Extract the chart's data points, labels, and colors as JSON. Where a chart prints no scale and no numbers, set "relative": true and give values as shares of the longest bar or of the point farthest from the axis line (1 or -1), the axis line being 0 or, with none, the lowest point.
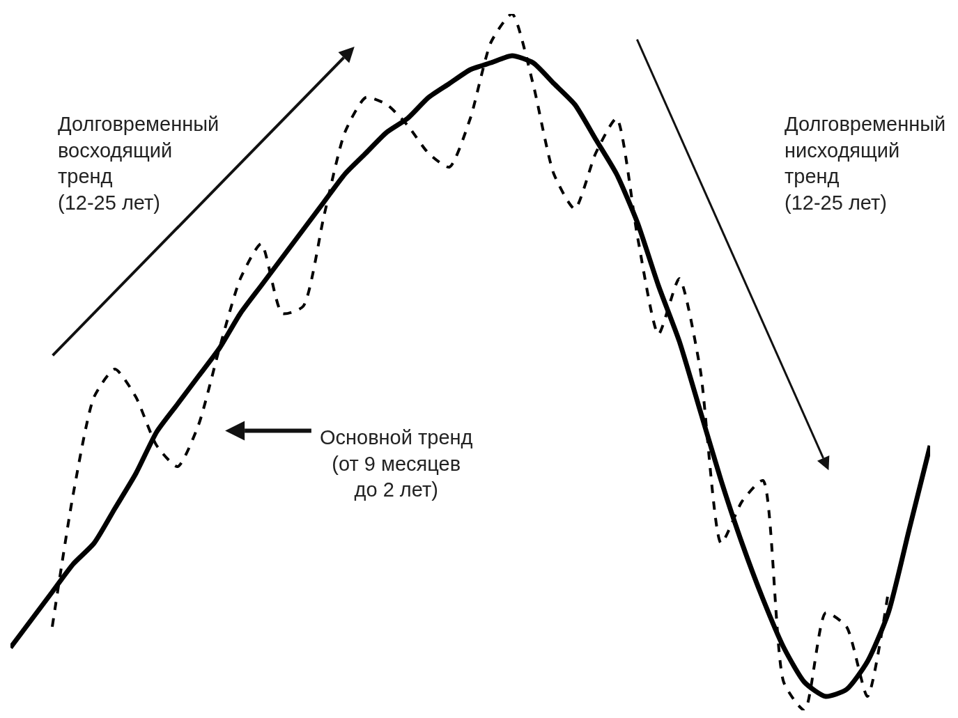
{
  "chart_data": {
    "type": "line",
    "relative": true,
    "legend": false,
    "marker": "none",
    "categories": [
      null,
      null,
      null,
      null,
      null,
      null,
      null,
      null,
      null,
      null,
      null,
      null,
      null,
      null,
      null,
      null,
      null,
      null,
      null,
      null,
      null,
      null,
      null,
      null,
      null,
      null,
      null,
      null,
      null,
      null,
      null,
      null,
      null,
      null,
      null,
      null,
      null,
      null,
      null,
      null,
      null,
      null,
      null,
      null,
      null
    ],
    "series": [
      {
        "color": "#000000",
        "line_style": "solid",
        "values": [
          0.09,
          0.13,
          0.17,
          0.21,
          0.24,
          0.29,
          0.34,
          0.4,
          0.44,
          0.48,
          0.52,
          0.57,
          0.61,
          0.65,
          0.69,
          0.73,
          0.77,
          0.8,
          0.83,
          0.85,
          0.88,
          0.9,
          0.92,
          0.93,
          0.94,
          0.93,
          0.9,
          0.87,
          0.82,
          0.77,
          0.7,
          0.61,
          0.53,
          0.43,
          0.33,
          0.24,
          0.16,
          0.09,
          0.04,
          0.02,
          0.03,
          0.07,
          0.14,
          0.26,
          0.38
        ]
      },
      {
        "color": "#000000",
        "line_style": "dashed",
        "values": [
          null,
          null,
          0.12,
          0.31,
          0.45,
          0.49,
          0.45,
          0.38,
          0.35,
          0.41,
          0.52,
          0.62,
          0.67,
          0.57,
          0.58,
          0.71,
          0.83,
          0.88,
          0.87,
          0.84,
          0.8,
          0.78,
          0.85,
          0.96,
          1.0,
          0.9,
          0.77,
          0.72,
          0.8,
          0.85,
          0.68,
          0.54,
          0.62,
          0.49,
          0.24,
          0.3,
          0.33,
          0.04,
          0.0,
          0.14,
          0.12,
          0.02,
          0.17,
          null,
          null
        ]
      }
    ],
    "annotations": [
      "Долговременный\nвосходящий\nтренд\n(12-25 лет)",
      "Основной тренд\n(от 9 месяцев\nдо 2 лет)",
      "Долговременный\nнисходящий\nтренд\n(12-25 лет)"
    ]
  }
}
